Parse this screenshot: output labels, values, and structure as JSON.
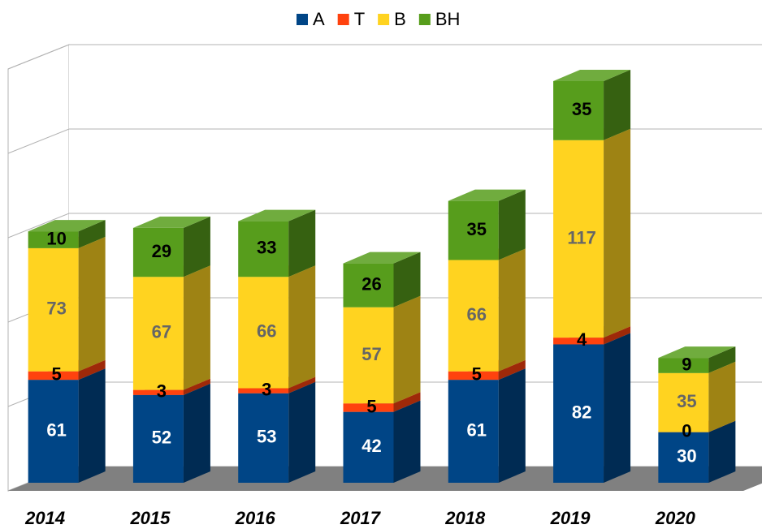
{
  "chart_data": {
    "type": "bar3d_stacked",
    "categories": [
      "2014",
      "2015",
      "2016",
      "2017",
      "2018",
      "2019",
      "2020"
    ],
    "series": [
      {
        "name": "A",
        "color": "#004586",
        "label_color": "#ffffff",
        "values": [
          61,
          52,
          53,
          42,
          61,
          82,
          30
        ]
      },
      {
        "name": "T",
        "color": "#ff420e",
        "label_color": "#000000",
        "values": [
          5,
          3,
          3,
          5,
          5,
          4,
          0
        ]
      },
      {
        "name": "B",
        "color": "#ffd320",
        "label_color": "#666666",
        "values": [
          73,
          67,
          66,
          57,
          66,
          117,
          35
        ]
      },
      {
        "name": "BH",
        "color": "#579d1c",
        "label_color": "#000000",
        "values": [
          10,
          29,
          33,
          26,
          35,
          35,
          9
        ]
      }
    ],
    "ylim": [
      0,
      250
    ],
    "yticks": [
      0,
      50,
      100,
      150,
      200,
      250
    ],
    "grid": true,
    "legend": "top"
  }
}
